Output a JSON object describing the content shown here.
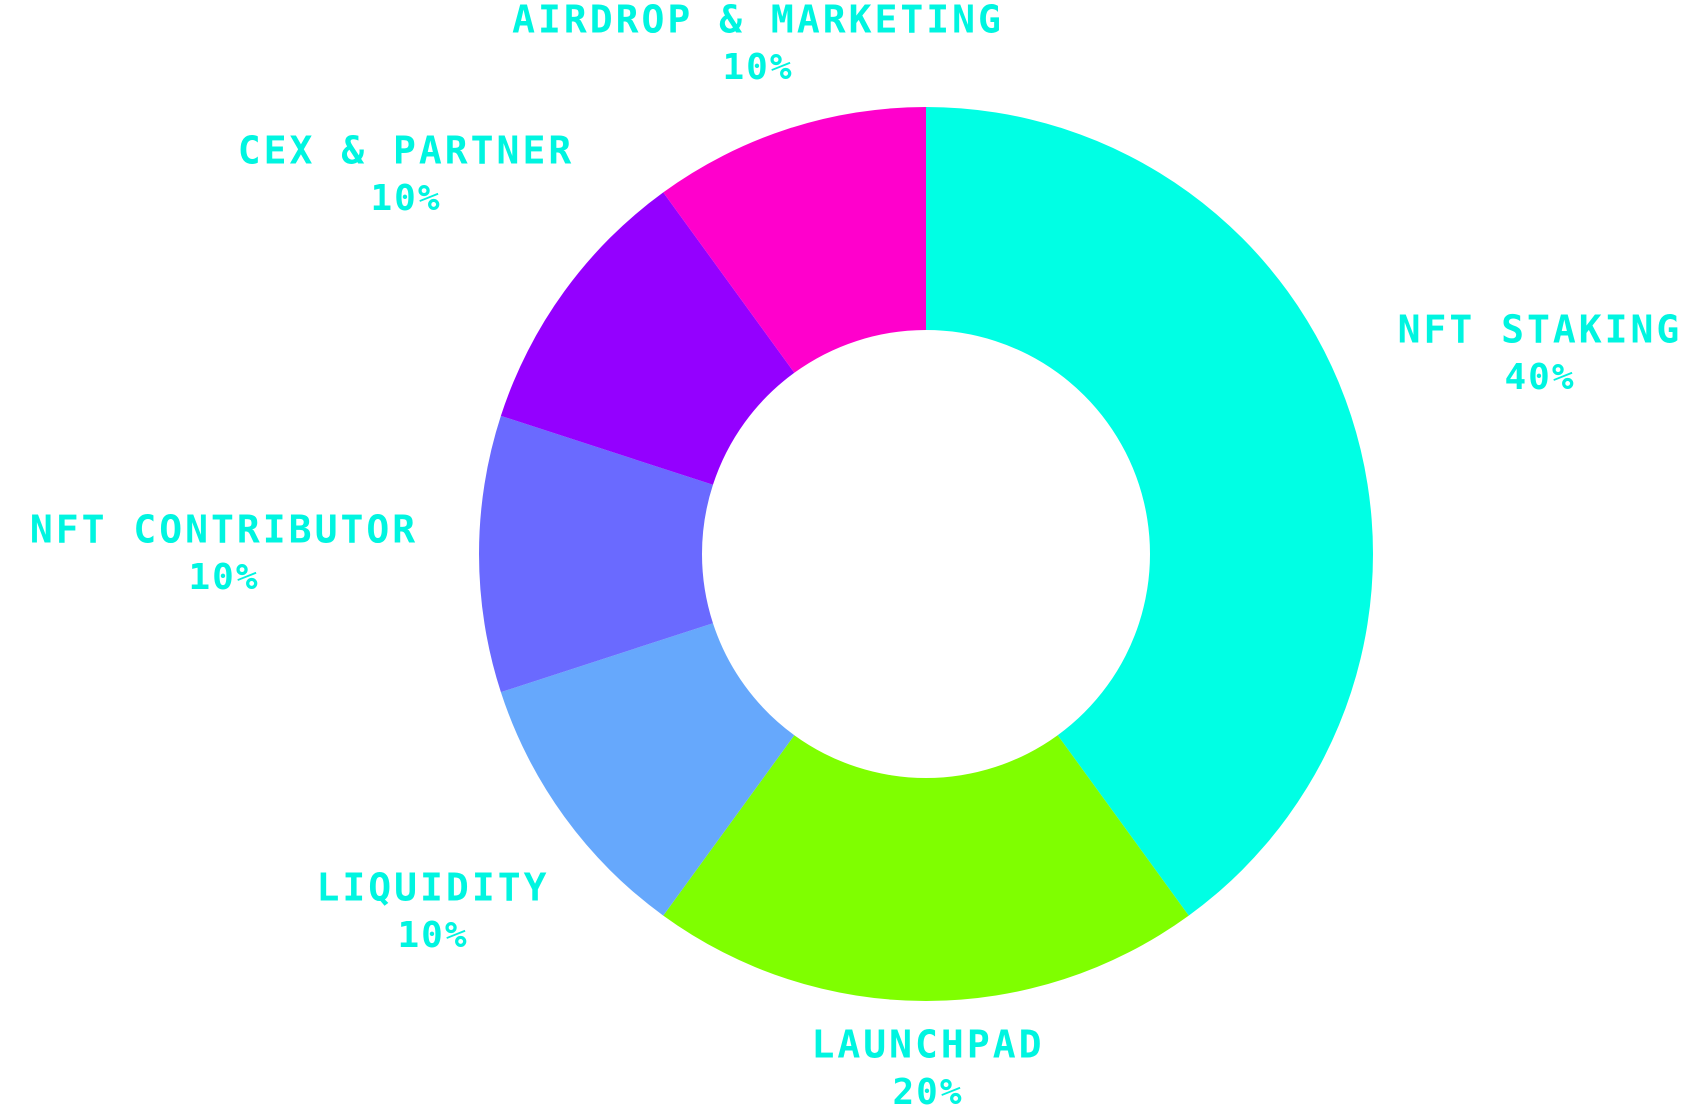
{
  "chart_data": {
    "type": "pie",
    "donut": true,
    "label_color": "#00f5e0",
    "slices": [
      {
        "name": "NFT STAKING",
        "value": 40,
        "label": "40%",
        "color": "#00ffe4"
      },
      {
        "name": "LAUNCHPAD",
        "value": 20,
        "label": "20%",
        "color": "#7fff00"
      },
      {
        "name": "LIQUIDITY",
        "value": 10,
        "label": "10%",
        "color": "#66a8fc"
      },
      {
        "name": "NFT CONTRIBUTOR",
        "value": 10,
        "label": "10%",
        "color": "#6a6aff"
      },
      {
        "name": "CEX & PARTNER",
        "value": 10,
        "label": "10%",
        "color": "#9400ff"
      },
      {
        "name": "AIRDROP & MARKETING",
        "value": 10,
        "label": "10%",
        "color": "#ff00cc"
      }
    ]
  }
}
